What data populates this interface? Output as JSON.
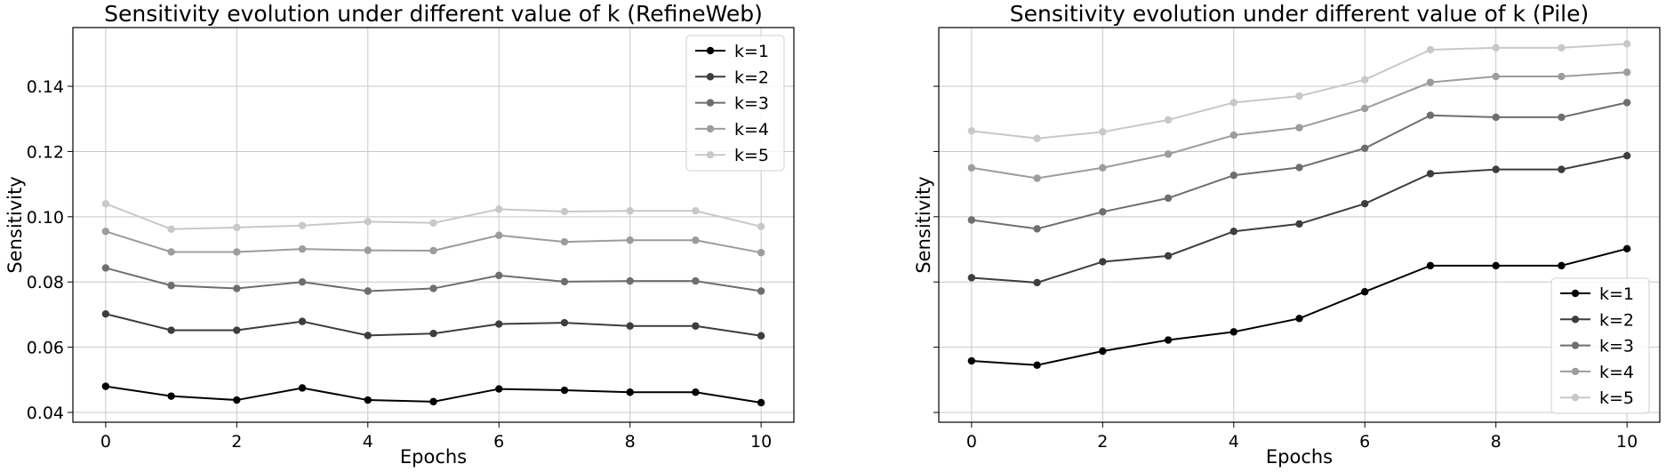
{
  "chart_data": [
    {
      "type": "line",
      "title": "Sensitivity evolution under different value of k (RefineWeb)",
      "xlabel": "Epochs",
      "ylabel": "Sensitivity",
      "x": [
        0,
        1,
        2,
        3,
        4,
        5,
        6,
        7,
        8,
        9,
        10
      ],
      "xticks": [
        0,
        2,
        4,
        6,
        8,
        10
      ],
      "xtick_labels": [
        "0",
        "2",
        "4",
        "6",
        "8",
        "10"
      ],
      "yticks": [
        0.04,
        0.06,
        0.08,
        0.1,
        0.12,
        0.14
      ],
      "ytick_labels": [
        "0.04",
        "0.06",
        "0.08",
        "0.10",
        "0.12",
        "0.14"
      ],
      "xlim": [
        -0.5,
        10.5
      ],
      "ylim": [
        0.037,
        0.158
      ],
      "grid": true,
      "legend_position": "top-right",
      "series": [
        {
          "name": "k=1",
          "color": "#000000",
          "values": [
            0.048,
            0.045,
            0.0438,
            0.0475,
            0.0438,
            0.0433,
            0.0472,
            0.0468,
            0.0462,
            0.0462,
            0.043
          ]
        },
        {
          "name": "k=2",
          "color": "#3d3d3d",
          "values": [
            0.0702,
            0.0652,
            0.0652,
            0.0679,
            0.0636,
            0.0642,
            0.0671,
            0.0675,
            0.0665,
            0.0665,
            0.0635
          ]
        },
        {
          "name": "k=3",
          "color": "#6e6e6e",
          "values": [
            0.0843,
            0.0789,
            0.078,
            0.08,
            0.0772,
            0.078,
            0.082,
            0.0801,
            0.0803,
            0.0803,
            0.0772
          ]
        },
        {
          "name": "k=4",
          "color": "#9c9c9c",
          "values": [
            0.0955,
            0.0892,
            0.0892,
            0.0901,
            0.0897,
            0.0896,
            0.0943,
            0.0923,
            0.0928,
            0.0928,
            0.089
          ]
        },
        {
          "name": "k=5",
          "color": "#c8c8c8",
          "values": [
            0.104,
            0.0962,
            0.0967,
            0.0973,
            0.0985,
            0.0981,
            0.1023,
            0.1016,
            0.1018,
            0.1018,
            0.097
          ]
        }
      ]
    },
    {
      "type": "line",
      "title": "Sensitivity evolution under different value of k (Pile)",
      "xlabel": "Epochs",
      "ylabel": "Sensitivity",
      "x": [
        0,
        1,
        2,
        3,
        4,
        5,
        6,
        7,
        8,
        9,
        10
      ],
      "xticks": [
        0,
        2,
        4,
        6,
        8,
        10
      ],
      "xtick_labels": [
        "0",
        "2",
        "4",
        "6",
        "8",
        "10"
      ],
      "yticks": [
        0.04,
        0.06,
        0.08,
        0.1,
        0.12,
        0.14
      ],
      "ytick_labels": [],
      "xlim": [
        -0.5,
        10.5
      ],
      "ylim": [
        0.037,
        0.158
      ],
      "grid": true,
      "legend_position": "bottom-right",
      "series": [
        {
          "name": "k=1",
          "color": "#000000",
          "values": [
            0.0558,
            0.0545,
            0.0588,
            0.0622,
            0.0647,
            0.0688,
            0.077,
            0.085,
            0.085,
            0.085,
            0.0902
          ]
        },
        {
          "name": "k=2",
          "color": "#3d3d3d",
          "values": [
            0.0813,
            0.0798,
            0.0862,
            0.088,
            0.0955,
            0.0978,
            0.104,
            0.1132,
            0.1145,
            0.1145,
            0.1187
          ]
        },
        {
          "name": "k=3",
          "color": "#6e6e6e",
          "values": [
            0.099,
            0.0963,
            0.1015,
            0.1057,
            0.1127,
            0.1151,
            0.121,
            0.1311,
            0.1305,
            0.1305,
            0.135
          ]
        },
        {
          "name": "k=4",
          "color": "#9c9c9c",
          "values": [
            0.115,
            0.1118,
            0.115,
            0.1192,
            0.125,
            0.1273,
            0.1332,
            0.1412,
            0.143,
            0.143,
            0.1443
          ]
        },
        {
          "name": "k=5",
          "color": "#c8c8c8",
          "values": [
            0.1263,
            0.124,
            0.126,
            0.1297,
            0.135,
            0.137,
            0.142,
            0.1512,
            0.1518,
            0.1518,
            0.153
          ]
        }
      ]
    }
  ]
}
